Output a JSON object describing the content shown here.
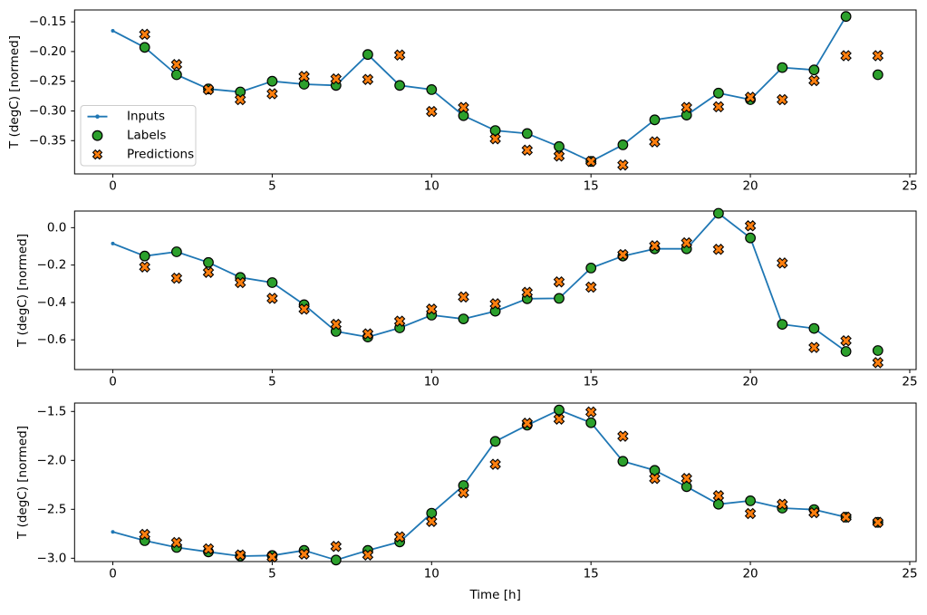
{
  "figure": {
    "xlabel": "Time [h]",
    "background": "#ffffff",
    "axis_color": "#000000"
  },
  "legend": {
    "items": [
      {
        "label": "Inputs",
        "marker": "line-dot-icon",
        "color": "#1f77b4"
      },
      {
        "label": "Labels",
        "marker": "circle-icon",
        "color": "#2ca02c"
      },
      {
        "label": "Predictions",
        "marker": "x-icon",
        "color": "#ff7f0e"
      }
    ],
    "border_color": "#cccccc",
    "background": "#ffffff"
  },
  "chart_data": [
    {
      "type": "line",
      "ylabel": "T (degC) [normed]",
      "xlim": [
        -1.2,
        25.2
      ],
      "ylim": [
        -0.406,
        -0.13
      ],
      "xticks": [
        0,
        5,
        10,
        15,
        20,
        25
      ],
      "xtick_labels": [
        "0",
        "5",
        "10",
        "15",
        "20",
        "25"
      ],
      "yticks": [
        -0.15,
        -0.2,
        -0.25,
        -0.3,
        -0.35
      ],
      "ytick_labels": [
        "−0.15",
        "−0.20",
        "−0.25",
        "−0.30",
        "−0.35"
      ],
      "legend": true,
      "series": [
        {
          "name": "Inputs",
          "kind": "line",
          "color": "#1f77b4",
          "x": [
            0,
            1,
            2,
            3,
            4,
            5,
            6,
            7,
            8,
            9,
            10,
            11,
            12,
            13,
            14,
            15,
            16,
            17,
            18,
            19,
            20,
            21,
            22,
            23
          ],
          "y": [
            -0.165,
            -0.193,
            -0.239,
            -0.263,
            -0.268,
            -0.25,
            -0.255,
            -0.257,
            -0.205,
            -0.257,
            -0.264,
            -0.308,
            -0.333,
            -0.338,
            -0.36,
            -0.385,
            -0.357,
            -0.315,
            -0.307,
            -0.27,
            -0.281,
            -0.227,
            -0.231,
            -0.141
          ]
        },
        {
          "name": "Labels",
          "kind": "scatter",
          "marker": "circle",
          "color": "#2ca02c",
          "edgecolor": "#000000",
          "x": [
            1,
            2,
            3,
            4,
            5,
            6,
            7,
            8,
            9,
            10,
            11,
            12,
            13,
            14,
            15,
            16,
            17,
            18,
            19,
            20,
            21,
            22,
            23,
            24
          ],
          "y": [
            -0.193,
            -0.239,
            -0.263,
            -0.268,
            -0.25,
            -0.255,
            -0.257,
            -0.205,
            -0.257,
            -0.264,
            -0.308,
            -0.333,
            -0.338,
            -0.36,
            -0.385,
            -0.357,
            -0.315,
            -0.307,
            -0.27,
            -0.281,
            -0.227,
            -0.231,
            -0.141,
            -0.239
          ]
        },
        {
          "name": "Predictions",
          "kind": "scatter",
          "marker": "X",
          "color": "#ff7f0e",
          "edgecolor": "#000000",
          "x": [
            1,
            2,
            3,
            4,
            5,
            6,
            7,
            8,
            9,
            10,
            11,
            12,
            13,
            14,
            15,
            16,
            17,
            18,
            19,
            20,
            21,
            22,
            23,
            24
          ],
          "y": [
            -0.171,
            -0.222,
            -0.264,
            -0.281,
            -0.271,
            -0.242,
            -0.246,
            -0.247,
            -0.206,
            -0.301,
            -0.294,
            -0.347,
            -0.366,
            -0.376,
            -0.385,
            -0.391,
            -0.352,
            -0.294,
            -0.293,
            -0.277,
            -0.281,
            -0.249,
            -0.207,
            -0.207
          ]
        }
      ]
    },
    {
      "type": "line",
      "ylabel": "T (degC) [normed]",
      "xlim": [
        -1.2,
        25.2
      ],
      "ylim": [
        -0.759,
        0.089
      ],
      "xticks": [
        0,
        5,
        10,
        15,
        20,
        25
      ],
      "xtick_labels": [
        "0",
        "5",
        "10",
        "15",
        "20",
        "25"
      ],
      "yticks": [
        0.0,
        -0.2,
        -0.4,
        -0.6
      ],
      "ytick_labels": [
        "0.0",
        "−0.2",
        "−0.4",
        "−0.6"
      ],
      "legend": false,
      "series": [
        {
          "name": "Inputs",
          "kind": "line",
          "color": "#1f77b4",
          "x": [
            0,
            1,
            2,
            3,
            4,
            5,
            6,
            7,
            8,
            9,
            10,
            11,
            12,
            13,
            14,
            15,
            16,
            17,
            18,
            19,
            20,
            21,
            22,
            23
          ],
          "y": [
            -0.085,
            -0.152,
            -0.129,
            -0.186,
            -0.266,
            -0.294,
            -0.412,
            -0.555,
            -0.585,
            -0.536,
            -0.468,
            -0.488,
            -0.447,
            -0.38,
            -0.378,
            -0.216,
            -0.152,
            -0.113,
            -0.113,
            0.077,
            -0.055,
            -0.517,
            -0.539,
            -0.662
          ]
        },
        {
          "name": "Labels",
          "kind": "scatter",
          "marker": "circle",
          "color": "#2ca02c",
          "edgecolor": "#000000",
          "x": [
            1,
            2,
            3,
            4,
            5,
            6,
            7,
            8,
            9,
            10,
            11,
            12,
            13,
            14,
            15,
            16,
            17,
            18,
            19,
            20,
            21,
            22,
            23,
            24
          ],
          "y": [
            -0.152,
            -0.129,
            -0.186,
            -0.266,
            -0.294,
            -0.412,
            -0.555,
            -0.585,
            -0.536,
            -0.468,
            -0.488,
            -0.447,
            -0.38,
            -0.378,
            -0.216,
            -0.152,
            -0.113,
            -0.113,
            0.077,
            -0.055,
            -0.517,
            -0.539,
            -0.662,
            -0.657
          ]
        },
        {
          "name": "Predictions",
          "kind": "scatter",
          "marker": "X",
          "color": "#ff7f0e",
          "edgecolor": "#000000",
          "x": [
            1,
            2,
            3,
            4,
            5,
            6,
            7,
            8,
            9,
            10,
            11,
            12,
            13,
            14,
            15,
            16,
            17,
            18,
            19,
            20,
            21,
            22,
            23,
            24
          ],
          "y": [
            -0.21,
            -0.27,
            -0.239,
            -0.294,
            -0.378,
            -0.436,
            -0.517,
            -0.568,
            -0.5,
            -0.436,
            -0.371,
            -0.407,
            -0.346,
            -0.29,
            -0.318,
            -0.144,
            -0.097,
            -0.081,
            -0.116,
            0.01,
            -0.189,
            -0.641,
            -0.605,
            -0.722
          ]
        }
      ]
    },
    {
      "type": "line",
      "ylabel": "T (degC) [normed]",
      "xlim": [
        -1.2,
        25.2
      ],
      "ylim": [
        -3.034,
        -1.414
      ],
      "xticks": [
        0,
        5,
        10,
        15,
        20,
        25
      ],
      "xtick_labels": [
        "0",
        "5",
        "10",
        "15",
        "20",
        "25"
      ],
      "yticks": [
        -1.5,
        -2.0,
        -2.5,
        -3.0
      ],
      "ytick_labels": [
        "−1.5",
        "−2.0",
        "−2.5",
        "−3.0"
      ],
      "legend": false,
      "series": [
        {
          "name": "Inputs",
          "kind": "line",
          "color": "#1f77b4",
          "x": [
            0,
            1,
            2,
            3,
            4,
            5,
            6,
            7,
            8,
            9,
            10,
            11,
            12,
            13,
            14,
            15,
            16,
            17,
            18,
            19,
            20,
            21,
            22,
            23
          ],
          "y": [
            -2.73,
            -2.82,
            -2.89,
            -2.935,
            -2.978,
            -2.972,
            -2.92,
            -3.018,
            -2.92,
            -2.833,
            -2.54,
            -2.256,
            -1.806,
            -1.64,
            -1.485,
            -1.615,
            -2.009,
            -2.102,
            -2.268,
            -2.448,
            -2.413,
            -2.488,
            -2.503,
            -2.58
          ]
        },
        {
          "name": "Labels",
          "kind": "scatter",
          "marker": "circle",
          "color": "#2ca02c",
          "edgecolor": "#000000",
          "x": [
            1,
            2,
            3,
            4,
            5,
            6,
            7,
            8,
            9,
            10,
            11,
            12,
            13,
            14,
            15,
            16,
            17,
            18,
            19,
            20,
            21,
            22,
            23,
            24
          ],
          "y": [
            -2.82,
            -2.89,
            -2.935,
            -2.978,
            -2.972,
            -2.92,
            -3.018,
            -2.92,
            -2.833,
            -2.54,
            -2.256,
            -1.806,
            -1.64,
            -1.485,
            -1.615,
            -2.009,
            -2.102,
            -2.268,
            -2.448,
            -2.413,
            -2.488,
            -2.503,
            -2.58,
            -2.633
          ]
        },
        {
          "name": "Predictions",
          "kind": "scatter",
          "marker": "X",
          "color": "#ff7f0e",
          "edgecolor": "#000000",
          "x": [
            1,
            2,
            3,
            4,
            5,
            6,
            7,
            8,
            9,
            10,
            11,
            12,
            13,
            14,
            15,
            16,
            17,
            18,
            19,
            20,
            21,
            22,
            23,
            24
          ],
          "y": [
            -2.756,
            -2.84,
            -2.904,
            -2.966,
            -2.988,
            -2.957,
            -2.879,
            -2.966,
            -2.781,
            -2.624,
            -2.33,
            -2.04,
            -1.62,
            -1.578,
            -1.506,
            -1.753,
            -2.185,
            -2.185,
            -2.361,
            -2.543,
            -2.448,
            -2.534,
            -2.58,
            -2.633
          ]
        }
      ]
    }
  ]
}
